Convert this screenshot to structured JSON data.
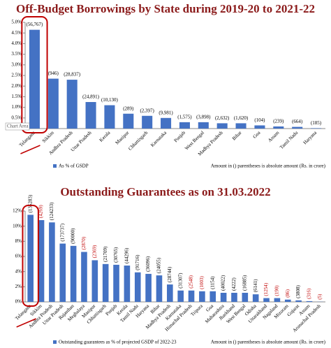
{
  "chart_data": [
    {
      "type": "bar",
      "title": "Off-Budget Borrowings by State during 2019-20 to 2021-22",
      "categories": [
        "Telangana",
        "Sikkim",
        "Andhra Pradesh",
        "Uttar Pradesh",
        "Kerala",
        "Manipur",
        "Chhattisgarh",
        "Karnataka",
        "Punjab",
        "West Bengal",
        "Madhya Pradesh",
        "Bihar",
        "Goa",
        "Assam",
        "Tamil Nadu",
        "Haryana"
      ],
      "series": [
        {
          "name": "As % of GSDP",
          "color": "#4472c4",
          "values": [
            4.65,
            2.35,
            2.3,
            1.25,
            1.1,
            0.7,
            0.6,
            0.5,
            0.3,
            0.3,
            0.25,
            0.25,
            0.15,
            0.1,
            0.08,
            0.02
          ],
          "amount_labels": [
            "(56,767)",
            "(946)",
            "(28,837)",
            "(24,891)",
            "(10,130)",
            "(289)",
            "(2,397)",
            "(9,981)",
            "(1,575)",
            "(3,898)",
            "(2,632)",
            "(1,620)",
            "(104)",
            "(239)",
            "(664)",
            "(185)"
          ]
        }
      ],
      "ylim": [
        0,
        5
      ],
      "yticks": [
        {
          "value": 0,
          "label": "0.0%"
        },
        {
          "value": 0.5,
          "label": "0.5%"
        },
        {
          "value": 1,
          "label": "1.0%"
        },
        {
          "value": 1.5,
          "label": "1.5%"
        },
        {
          "value": 2,
          "label": "2.0%"
        },
        {
          "value": 2.5,
          "label": "2.5%"
        },
        {
          "value": 3,
          "label": "3.0%"
        },
        {
          "value": 3.5,
          "label": "3.5%"
        },
        {
          "value": 4,
          "label": "4.0%"
        },
        {
          "value": 4.5,
          "label": "4.5%"
        },
        {
          "value": 5,
          "label": "5.0%"
        }
      ],
      "footnote": "Amount in () parentheses is  absolute amount (Rs. in crore)",
      "tooltip": "Chart Area"
    },
    {
      "type": "bar",
      "title": "Outstanding Guarantees as on 31.03.2022",
      "categories": [
        "Telangana",
        "Sikkim",
        "Andhra Pradesh",
        "Uttar Pradesh",
        "Rajasthan",
        "Meghalaya",
        "Manipur",
        "Chhattisgarh",
        "Punjab",
        "Kerala",
        "Tamil Nadu",
        "Haryana",
        "Bihar",
        "Madhya Pradesh",
        "Karnataka",
        "Himachal Pradesh",
        "Tripura",
        "Goa",
        "Maharashtra",
        "Jharkhand",
        "West Bengal",
        "Odisha",
        "Uttarakhand",
        "Nagaland",
        "Mizoram",
        "Gujarat",
        "Assam",
        "Arunachal Pradesh"
      ],
      "series": [
        {
          "name": "Outstanding guarantees as % of projected GSDP of 2022-23",
          "color": "#4472c4",
          "values": [
            11.5,
            10.8,
            10.5,
            7.7,
            7.4,
            6.6,
            5.5,
            5.0,
            4.9,
            4.8,
            3.9,
            3.7,
            3.5,
            2.3,
            1.5,
            1.5,
            1.4,
            1.4,
            1.2,
            1.2,
            1.2,
            1.0,
            0.5,
            0.5,
            0.3,
            0.2,
            0.1,
            0.02
          ],
          "amount_labels": [
            "(135283)",
            "(4269)",
            "(124233)",
            "(173737)",
            "(90000)",
            "(2870)",
            "(2369)",
            "(21709)",
            "(30765)",
            "(44296)",
            "(91716)",
            "(36096)",
            "(24055)",
            "(28744)",
            "(31307)",
            "(2548)",
            "(1003)",
            "(1154)",
            "(40022)",
            "(4222)",
            "(16885)",
            "(6141)",
            "(1254)",
            "(190)",
            "(86)",
            "(3808)",
            "(316)",
            "(5)"
          ],
          "amount_label_colors": [
            "#000",
            "#c00000",
            "#000",
            "#000",
            "#000",
            "#c00000",
            "#c00000",
            "#000",
            "#000",
            "#000",
            "#000",
            "#000",
            "#000",
            "#000",
            "#000",
            "#c00000",
            "#c00000",
            "#000",
            "#000",
            "#000",
            "#000",
            "#000",
            "#c00000",
            "#c00000",
            "#c00000",
            "#000",
            "#c00000",
            "#c00000"
          ]
        }
      ],
      "ylim": [
        0,
        12
      ],
      "yticks": [
        {
          "value": 0,
          "label": "0%"
        },
        {
          "value": 2,
          "label": "2%"
        },
        {
          "value": 4,
          "label": "4%"
        },
        {
          "value": 6,
          "label": "6%"
        },
        {
          "value": 8,
          "label": "8%"
        },
        {
          "value": 10,
          "label": "10%"
        },
        {
          "value": 12,
          "label": "12%"
        }
      ],
      "footnote": "Amount in () parentheses is absolute amount (Rs. in crore)"
    }
  ]
}
